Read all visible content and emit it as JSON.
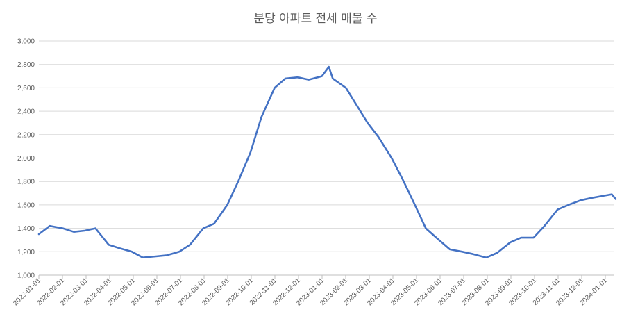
{
  "chart_data": {
    "type": "line",
    "title": "분당 아파트 전세 매물 수",
    "xlabel": "",
    "ylabel": "",
    "ylim": [
      1000,
      3000
    ],
    "yticks": [
      "1,000",
      "1,200",
      "1,400",
      "1,600",
      "1,800",
      "2,000",
      "2,200",
      "2,400",
      "2,600",
      "2,800",
      "3,000"
    ],
    "xticks": [
      "2022-01-01",
      "2022-02-01",
      "2022-03-01",
      "2022-04-01",
      "2022-05-01",
      "2022-06-01",
      "2022-07-01",
      "2022-08-01",
      "2022-09-01",
      "2022-10-01",
      "2022-11-01",
      "2022-12-01",
      "2023-01-01",
      "2023-02-01",
      "2023-03-01",
      "2023-04-01",
      "2023-05-01",
      "2023-06-01",
      "2023-07-01",
      "2023-08-01",
      "2023-09-01",
      "2023-10-01",
      "2023-11-01",
      "2023-12-01",
      "2024-01-01"
    ],
    "grid": true,
    "legend": "none",
    "line_color": "#4472C4",
    "series": [
      {
        "x": [
          "2022-01-01",
          "2022-01-15",
          "2022-02-01",
          "2022-02-15",
          "2022-03-01",
          "2022-03-15",
          "2022-04-01",
          "2022-04-15",
          "2022-05-01",
          "2022-05-15",
          "2022-06-01",
          "2022-06-15",
          "2022-07-01",
          "2022-07-15",
          "2022-08-01",
          "2022-08-15",
          "2022-09-01",
          "2022-09-15",
          "2022-10-01",
          "2022-10-15",
          "2022-11-01",
          "2022-11-15",
          "2022-12-01",
          "2022-12-15",
          "2023-01-01",
          "2023-01-10",
          "2023-01-15",
          "2023-02-01",
          "2023-02-15",
          "2023-03-01",
          "2023-03-15",
          "2023-04-01",
          "2023-04-15",
          "2023-05-01",
          "2023-05-15",
          "2023-06-01",
          "2023-06-15",
          "2023-07-01",
          "2023-07-15",
          "2023-08-01",
          "2023-08-15",
          "2023-09-01",
          "2023-09-15",
          "2023-10-01",
          "2023-10-15",
          "2023-11-01",
          "2023-11-15",
          "2023-12-01",
          "2023-12-15",
          "2024-01-01",
          "2024-01-10",
          "2024-01-15"
        ],
        "values": [
          1350,
          1420,
          1400,
          1370,
          1380,
          1400,
          1260,
          1230,
          1200,
          1150,
          1160,
          1170,
          1200,
          1260,
          1400,
          1440,
          1600,
          1800,
          2050,
          2350,
          2600,
          2680,
          2690,
          2670,
          2700,
          2780,
          2680,
          2600,
          2450,
          2300,
          2180,
          2000,
          1820,
          1600,
          1400,
          1300,
          1220,
          1200,
          1180,
          1150,
          1190,
          1280,
          1320,
          1320,
          1420,
          1560,
          1600,
          1640,
          1660,
          1680,
          1690,
          1650
        ]
      }
    ]
  }
}
